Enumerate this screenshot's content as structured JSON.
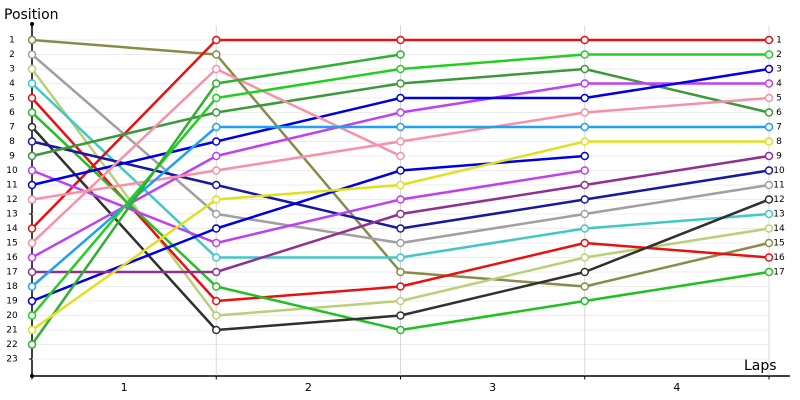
{
  "chart_data": {
    "type": "line",
    "y_title": "Position",
    "x_title": "Laps",
    "categories": [
      "1",
      "2",
      "3",
      "4"
    ],
    "x": [
      0,
      1,
      2,
      3,
      4
    ],
    "xlim": [
      0,
      4
    ],
    "ylim": [
      0,
      24
    ],
    "inverted": true,
    "yticks": [
      1,
      2,
      3,
      4,
      5,
      6,
      7,
      8,
      9,
      10,
      11,
      12,
      13,
      14,
      15,
      16,
      17,
      18,
      19,
      20,
      21,
      22,
      23
    ],
    "y2lim": [
      0,
      24
    ],
    "y2ticks": [
      1,
      2,
      3,
      4,
      5,
      6,
      7,
      8,
      9,
      10,
      11,
      12,
      13,
      14,
      15,
      16,
      17
    ],
    "grid": true,
    "series": [
      {
        "color": "#8a8a4a",
        "values": [
          1,
          2,
          17,
          18,
          15
        ]
      },
      {
        "color": "#a0a0a0",
        "values": [
          2,
          13,
          15,
          13,
          11
        ]
      },
      {
        "color": "#b8d078",
        "values": [
          3,
          20,
          19,
          16,
          14
        ]
      },
      {
        "color": "#40c8c8",
        "values": [
          4,
          16,
          16,
          14,
          13
        ]
      },
      {
        "color": "#e81010",
        "values": [
          14,
          1,
          1,
          1,
          1
        ]
      },
      {
        "color": "#e81010",
        "values": [
          5,
          19,
          18,
          15,
          16
        ]
      },
      {
        "color": "#20c020",
        "values": [
          6,
          18,
          21,
          19,
          17
        ]
      },
      {
        "color": "#303030",
        "values": [
          7,
          21,
          20,
          17,
          12
        ]
      },
      {
        "color": "#1818a0",
        "values": [
          8,
          11,
          14,
          12,
          10
        ]
      },
      {
        "color": "#3a9a3a",
        "values": [
          9,
          6,
          4,
          3,
          6
        ]
      },
      {
        "color": "#c040f0",
        "values": [
          10,
          15,
          12,
          10,
          null
        ]
      },
      {
        "color": "#c040f0",
        "values": [
          16,
          9,
          6,
          4,
          4
        ]
      },
      {
        "color": "#0000e0",
        "values": [
          11,
          8,
          5,
          5,
          3
        ]
      },
      {
        "color": "#0000e0",
        "values": [
          19,
          14,
          10,
          9,
          null
        ]
      },
      {
        "color": "#f890a8",
        "values": [
          12,
          10,
          8,
          6,
          5
        ]
      },
      {
        "color": "#f890a8",
        "values": [
          15,
          3,
          9,
          null,
          null
        ]
      },
      {
        "color": "#903090",
        "values": [
          17,
          17,
          13,
          11,
          9
        ]
      },
      {
        "color": "#20a0f0",
        "values": [
          18,
          7,
          7,
          7,
          7
        ]
      },
      {
        "color": "#20d020",
        "values": [
          20,
          5,
          3,
          2,
          2
        ]
      },
      {
        "color": "#30b030",
        "values": [
          22,
          4,
          2,
          null,
          null
        ]
      },
      {
        "color": "#e0e020",
        "values": [
          21,
          12,
          11,
          8,
          8
        ]
      }
    ]
  }
}
